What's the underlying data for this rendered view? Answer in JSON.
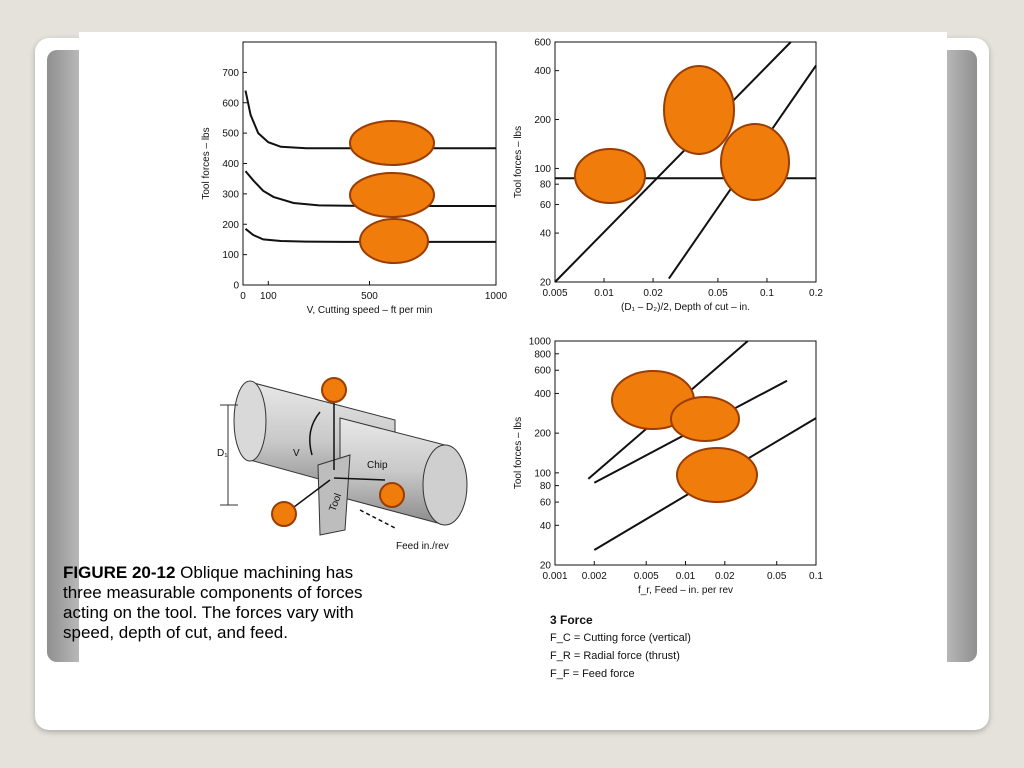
{
  "caption": {
    "figure": "FIGURE 20-12",
    "text": " Oblique machining has three measurable components of forces acting on the tool. The forces vary with speed, depth of cut, and feed."
  },
  "legend": {
    "title": "3 Force",
    "items": [
      "F_C = Cutting force (vertical)",
      "F_R = Radial force (thrust)",
      "F_F = Feed force"
    ]
  },
  "illustration": {
    "labels": {
      "d1": "D₁",
      "v": "V",
      "chip": "Chip",
      "tool": "Tool",
      "feed": "Feed in./rev"
    }
  },
  "marker_color": "#f07c0c",
  "chart_data": [
    {
      "type": "line",
      "id": "speed",
      "xlabel": "V, Cutting speed – ft per min",
      "ylabel": "Tool forces – lbs",
      "xlim": [
        0,
        1000
      ],
      "ylim": [
        0,
        800
      ],
      "xscale": "linear",
      "yscale": "linear",
      "xticks": [
        0,
        100,
        500,
        1000
      ],
      "xtick_labels": [
        "0",
        "100",
        "500",
        "1000"
      ],
      "yticks": [
        0,
        100,
        200,
        300,
        400,
        500,
        600,
        700
      ],
      "ytick_labels": [
        "0",
        "100",
        "200",
        "300",
        "400",
        "500",
        "600",
        "700"
      ],
      "series": [
        {
          "x": [
            10,
            30,
            60,
            100,
            150,
            250,
            400,
            1000
          ],
          "y": [
            640,
            560,
            500,
            470,
            455,
            450,
            450,
            450
          ]
        },
        {
          "x": [
            10,
            40,
            80,
            120,
            200,
            300,
            500,
            1000
          ],
          "y": [
            375,
            345,
            310,
            290,
            270,
            262,
            260,
            260
          ]
        },
        {
          "x": [
            10,
            40,
            80,
            150,
            250,
            400,
            1000
          ],
          "y": [
            185,
            165,
            150,
            145,
            143,
            142,
            142
          ]
        }
      ]
    },
    {
      "type": "line",
      "id": "depth",
      "xlabel": "(D₁ – D₂)/2, Depth of cut – in.",
      "ylabel": "Tool forces – lbs",
      "xlim": [
        0.005,
        0.2
      ],
      "ylim": [
        20,
        600
      ],
      "xscale": "log",
      "yscale": "log",
      "xticks": [
        0.005,
        0.01,
        0.02,
        0.05,
        0.1,
        0.2
      ],
      "xtick_labels": [
        "0.005",
        "0.01",
        "0.02",
        "0.05",
        "0.1",
        "0.2"
      ],
      "yticks": [
        20,
        40,
        60,
        80,
        100,
        200,
        400,
        600
      ],
      "ytick_labels": [
        "20",
        "40",
        "60",
        "80",
        "100",
        "200",
        "400",
        "600"
      ],
      "series": [
        {
          "x": [
            0.005,
            0.14
          ],
          "y": [
            20,
            600
          ]
        },
        {
          "x": [
            0.005,
            0.2
          ],
          "y": [
            87,
            87
          ]
        },
        {
          "x": [
            0.025,
            0.2
          ],
          "y": [
            21,
            430
          ]
        }
      ]
    },
    {
      "type": "line",
      "id": "feed",
      "xlabel": "f_r, Feed – in. per rev",
      "ylabel": "Tool forces – lbs",
      "xlim": [
        0.001,
        0.1
      ],
      "ylim": [
        20,
        1000
      ],
      "xscale": "log",
      "yscale": "log",
      "xticks": [
        0.001,
        0.002,
        0.005,
        0.01,
        0.02,
        0.05,
        0.1
      ],
      "xtick_labels": [
        "0.001",
        "0.002",
        "0.005",
        "0.01",
        "0.02",
        "0.05",
        "0.1"
      ],
      "yticks": [
        20,
        40,
        60,
        80,
        100,
        200,
        400,
        600,
        800,
        1000
      ],
      "ytick_labels": [
        "20",
        "40",
        "60",
        "80",
        "100",
        "200",
        "400",
        "600",
        "800",
        "1000"
      ],
      "series": [
        {
          "x": [
            0.0018,
            0.03
          ],
          "y": [
            90,
            1000
          ]
        },
        {
          "x": [
            0.002,
            0.06
          ],
          "y": [
            84,
            500
          ]
        },
        {
          "x": [
            0.002,
            0.1
          ],
          "y": [
            26,
            260
          ]
        }
      ]
    }
  ]
}
